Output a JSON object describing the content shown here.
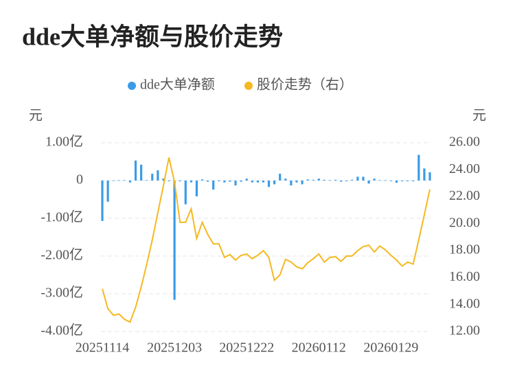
{
  "chart_data": {
    "type": "bar",
    "title": "dde大单净额与股价走势",
    "ylabel": "元",
    "y2label": "元",
    "legend": "top",
    "grid": true,
    "categories": [
      "20251114",
      null,
      null,
      null,
      null,
      null,
      null,
      null,
      null,
      null,
      null,
      null,
      null,
      "20251203",
      null,
      null,
      null,
      null,
      null,
      null,
      null,
      null,
      null,
      null,
      null,
      null,
      "20251222",
      null,
      null,
      null,
      null,
      null,
      null,
      null,
      null,
      null,
      null,
      null,
      null,
      "20260112",
      null,
      null,
      null,
      null,
      null,
      null,
      null,
      null,
      null,
      null,
      null,
      null,
      "20260129",
      null,
      null,
      null,
      null,
      null,
      null,
      null
    ],
    "series": [
      {
        "name": "dde大单净额",
        "type": "bar",
        "color": "#3a9be8",
        "values": [
          -1.07,
          -0.56,
          -0.01,
          0.01,
          0.01,
          -0.05,
          0.53,
          0.42,
          0.01,
          0.18,
          0.27,
          0.05,
          -0.02,
          -3.16,
          -0.02,
          -0.63,
          -0.05,
          -0.42,
          0.03,
          -0.03,
          -0.24,
          -0.02,
          -0.05,
          -0.03,
          -0.13,
          -0.03,
          0.05,
          -0.05,
          -0.05,
          -0.05,
          -0.17,
          -0.1,
          0.18,
          0.05,
          -0.13,
          -0.05,
          -0.1,
          0.03,
          0.02,
          0.05,
          0.02,
          0.01,
          0.02,
          -0.03,
          -0.02,
          0.02,
          0.1,
          0.1,
          -0.08,
          0.05,
          0.01,
          0.01,
          0.0,
          -0.06,
          -0.02,
          -0.02,
          -0.02,
          0.68,
          0.32,
          0.22
        ]
      },
      {
        "name": "股价走势（右）",
        "type": "line",
        "axis": "y2",
        "color": "#f5b820",
        "values": [
          15.16,
          13.7,
          13.2,
          13.3,
          12.9,
          12.7,
          13.8,
          15.3,
          17.0,
          18.8,
          20.8,
          22.8,
          24.9,
          23.1,
          20.1,
          20.1,
          21.1,
          18.9,
          20.1,
          19.2,
          18.5,
          18.5,
          17.5,
          17.7,
          17.3,
          17.65,
          17.75,
          17.4,
          17.65,
          18.0,
          17.5,
          15.8,
          16.2,
          17.35,
          17.15,
          16.8,
          16.65,
          17.1,
          17.4,
          17.75,
          17.15,
          17.5,
          17.55,
          17.2,
          17.6,
          17.6,
          18.0,
          18.3,
          18.4,
          17.9,
          18.35,
          18.05,
          17.65,
          17.3,
          16.85,
          17.15,
          17.0,
          18.8,
          20.65,
          22.55
        ]
      }
    ],
    "ylim": [
      -4,
      1
    ],
    "yticks": [
      {
        "value": 1,
        "label": "1.00亿"
      },
      0,
      {
        "value": -1,
        "label": "-1.00亿"
      },
      {
        "value": -2,
        "label": "-2.00亿"
      },
      {
        "value": -3,
        "label": "-3.00亿"
      },
      {
        "value": -4,
        "label": "-4.00亿"
      }
    ],
    "y2lim": [
      12,
      26
    ],
    "y2ticks": [
      {
        "value": 26,
        "label": "26.00"
      },
      {
        "value": 24,
        "label": "24.00"
      },
      {
        "value": 22,
        "label": "22.00"
      },
      {
        "value": 20,
        "label": "20.00"
      },
      {
        "value": 18,
        "label": "18.00"
      },
      {
        "value": 16,
        "label": "16.00"
      },
      {
        "value": 14,
        "label": "14.00"
      },
      {
        "value": 12,
        "label": "12.00"
      }
    ]
  }
}
